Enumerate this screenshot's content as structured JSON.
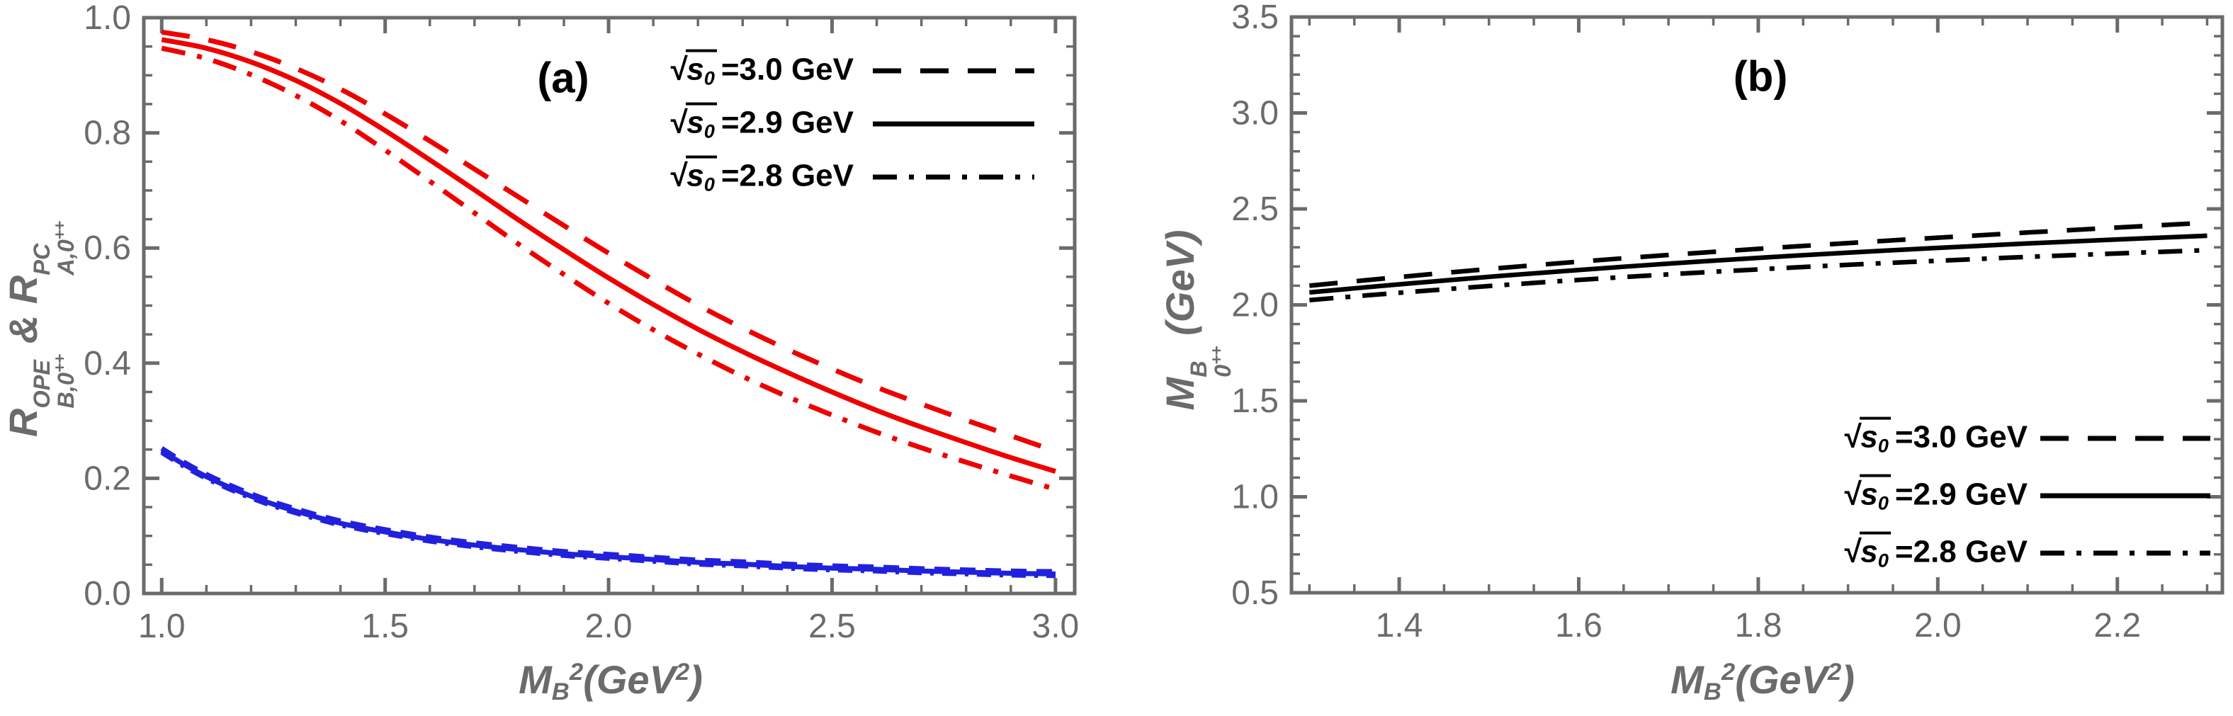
{
  "figure": {
    "background": "#ffffff",
    "axis_color": "#6b6b6b",
    "tick_label_color": "#6b6b6b",
    "panel_label_color": "#000000"
  },
  "chart_data": [
    {
      "type": "line",
      "panel_label": "(a)",
      "title": "",
      "xlabel": "M_B^2 (GeV^2)",
      "ylabel": "R_B,0++^OPE & R_A,0++^PC",
      "xlabel_tokens": [
        {
          "t": "M"
        },
        {
          "sub": "B"
        },
        {
          "sup": "2"
        },
        {
          "t": "(GeV"
        },
        {
          "sup": "2"
        },
        {
          "t": ")"
        }
      ],
      "ylabel_tokens": [
        {
          "t": "R"
        },
        {
          "sup": "OPE",
          "sub": "B,0++"
        },
        {
          "t": " & "
        },
        {
          "t": "R"
        },
        {
          "sup": "PC",
          "sub": "A,0++"
        }
      ],
      "xlim": [
        0.96,
        3.043
      ],
      "ylim": [
        0.0,
        1.0
      ],
      "x_major_ticks": [
        1.0,
        1.5,
        2.0,
        2.5,
        3.0
      ],
      "x_minor_step": 0.1,
      "y_major_ticks": [
        0.0,
        0.2,
        0.4,
        0.6,
        0.8,
        1.0
      ],
      "y_minor_step": 0.05,
      "grid": false,
      "legend_position": "top-right-inside",
      "legend": [
        {
          "symbol_base": "s",
          "symbol_sub": "0",
          "label": "=3.0 GeV",
          "line_style": "dashed"
        },
        {
          "symbol_base": "s",
          "symbol_sub": "0",
          "label": "=2.9 GeV",
          "line_style": "solid"
        },
        {
          "symbol_base": "s",
          "symbol_sub": "0",
          "label": "=2.8 GeV",
          "line_style": "dashdot"
        }
      ],
      "series": [
        {
          "name": "R_OPE sqrt(s0)=3.0 GeV",
          "color": "#ee0000",
          "line_style": "dashed",
          "width": 7,
          "x": [
            1.0,
            1.1,
            1.2,
            1.3,
            1.4,
            1.5,
            1.6,
            1.7,
            1.8,
            1.9,
            2.0,
            2.1,
            2.2,
            2.3,
            2.4,
            2.5,
            2.6,
            2.7,
            2.8,
            2.9,
            3.0
          ],
          "y": [
            0.975,
            0.962,
            0.941,
            0.912,
            0.876,
            0.833,
            0.786,
            0.737,
            0.688,
            0.639,
            0.591,
            0.545,
            0.501,
            0.461,
            0.424,
            0.39,
            0.358,
            0.329,
            0.301,
            0.274,
            0.247
          ]
        },
        {
          "name": "R_OPE sqrt(s0)=2.9 GeV",
          "color": "#ee0000",
          "line_style": "solid",
          "width": 7,
          "x": [
            1.0,
            1.1,
            1.2,
            1.3,
            1.4,
            1.5,
            1.6,
            1.7,
            1.8,
            1.9,
            2.0,
            2.1,
            2.2,
            2.3,
            2.4,
            2.5,
            2.6,
            2.7,
            2.8,
            2.9,
            3.0
          ],
          "y": [
            0.962,
            0.947,
            0.923,
            0.891,
            0.851,
            0.804,
            0.753,
            0.701,
            0.648,
            0.597,
            0.548,
            0.502,
            0.459,
            0.42,
            0.384,
            0.35,
            0.318,
            0.289,
            0.262,
            0.236,
            0.212
          ]
        },
        {
          "name": "R_OPE sqrt(s0)=2.8 GeV",
          "color": "#ee0000",
          "line_style": "dashdot",
          "width": 7,
          "x": [
            1.0,
            1.1,
            1.2,
            1.3,
            1.4,
            1.5,
            1.6,
            1.7,
            1.8,
            1.9,
            2.0,
            2.1,
            2.2,
            2.3,
            2.4,
            2.5,
            2.6,
            2.7,
            2.8,
            2.9,
            3.0
          ],
          "y": [
            0.947,
            0.929,
            0.901,
            0.865,
            0.821,
            0.77,
            0.716,
            0.661,
            0.606,
            0.554,
            0.504,
            0.458,
            0.416,
            0.377,
            0.342,
            0.31,
            0.28,
            0.253,
            0.228,
            0.204,
            0.181
          ]
        },
        {
          "name": "R_PC sqrt(s0)=3.0 GeV",
          "color": "#2121dd",
          "line_style": "dashed-fine",
          "width": 7,
          "x": [
            1.0,
            1.05,
            1.1,
            1.15,
            1.2,
            1.25,
            1.3,
            1.35,
            1.4,
            1.45,
            1.5,
            1.6,
            1.7,
            1.8,
            1.9,
            2.0,
            2.1,
            2.2,
            2.3,
            2.4,
            2.5,
            2.6,
            2.7,
            2.8,
            2.9,
            3.0
          ],
          "y": [
            0.252,
            0.228,
            0.207,
            0.189,
            0.173,
            0.159,
            0.147,
            0.136,
            0.126,
            0.118,
            0.111,
            0.098,
            0.088,
            0.08,
            0.073,
            0.068,
            0.063,
            0.058,
            0.055,
            0.051,
            0.048,
            0.046,
            0.043,
            0.041,
            0.039,
            0.038
          ]
        },
        {
          "name": "R_PC sqrt(s0)=2.9 GeV",
          "color": "#2121dd",
          "line_style": "solid",
          "width": 7,
          "x": [
            1.0,
            1.05,
            1.1,
            1.15,
            1.2,
            1.25,
            1.3,
            1.35,
            1.4,
            1.45,
            1.5,
            1.6,
            1.7,
            1.8,
            1.9,
            2.0,
            2.1,
            2.2,
            2.3,
            2.4,
            2.5,
            2.6,
            2.7,
            2.8,
            2.9,
            3.0
          ],
          "y": [
            0.248,
            0.224,
            0.203,
            0.185,
            0.169,
            0.155,
            0.143,
            0.132,
            0.122,
            0.114,
            0.107,
            0.094,
            0.084,
            0.076,
            0.069,
            0.064,
            0.059,
            0.054,
            0.051,
            0.047,
            0.044,
            0.042,
            0.039,
            0.037,
            0.035,
            0.034
          ]
        },
        {
          "name": "R_PC sqrt(s0)=2.8 GeV",
          "color": "#2121dd",
          "line_style": "dashdot-fine",
          "width": 7,
          "x": [
            1.0,
            1.05,
            1.1,
            1.15,
            1.2,
            1.25,
            1.3,
            1.35,
            1.4,
            1.45,
            1.5,
            1.6,
            1.7,
            1.8,
            1.9,
            2.0,
            2.1,
            2.2,
            2.3,
            2.4,
            2.5,
            2.6,
            2.7,
            2.8,
            2.9,
            3.0
          ],
          "y": [
            0.245,
            0.221,
            0.2,
            0.182,
            0.166,
            0.152,
            0.14,
            0.129,
            0.119,
            0.111,
            0.104,
            0.091,
            0.081,
            0.073,
            0.066,
            0.061,
            0.056,
            0.051,
            0.048,
            0.044,
            0.041,
            0.039,
            0.036,
            0.034,
            0.032,
            0.031
          ]
        }
      ]
    },
    {
      "type": "line",
      "panel_label": "(b)",
      "title": "",
      "xlabel": "M_B^2 (GeV^2)",
      "ylabel": "M_0++^B (GeV)",
      "xlabel_tokens": [
        {
          "t": "M"
        },
        {
          "sub": "B"
        },
        {
          "sup": "2"
        },
        {
          "t": "(GeV"
        },
        {
          "sup": "2"
        },
        {
          "t": ")"
        }
      ],
      "ylabel_tokens": [
        {
          "t": "M"
        },
        {
          "sup": "B",
          "sub": "0++"
        },
        {
          "t": " (GeV)"
        }
      ],
      "xlim": [
        1.28,
        2.317
      ],
      "ylim": [
        0.5,
        3.5
      ],
      "x_major_ticks": [
        1.4,
        1.6,
        1.8,
        2.0,
        2.2
      ],
      "x_minor_step": 0.05,
      "y_major_ticks": [
        0.5,
        1.0,
        1.5,
        2.0,
        2.5,
        3.0,
        3.5
      ],
      "y_minor_step": 0.1,
      "grid": false,
      "legend_position": "bottom-right-inside",
      "legend": [
        {
          "symbol_base": "s",
          "symbol_sub": "0",
          "label": "=3.0 GeV",
          "line_style": "dashed"
        },
        {
          "symbol_base": "s",
          "symbol_sub": "0",
          "label": "=2.9 GeV",
          "line_style": "solid"
        },
        {
          "symbol_base": "s",
          "symbol_sub": "0",
          "label": "=2.8 GeV",
          "line_style": "dashdot"
        }
      ],
      "series": [
        {
          "name": "M sqrt(s0)=3.0 GeV",
          "color": "#000000",
          "line_style": "dashed",
          "width": 6.5,
          "x": [
            1.3,
            1.4,
            1.5,
            1.6,
            1.7,
            1.8,
            1.9,
            2.0,
            2.1,
            2.2,
            2.3
          ],
          "y": [
            2.1,
            2.145,
            2.187,
            2.225,
            2.26,
            2.292,
            2.322,
            2.35,
            2.377,
            2.403,
            2.428
          ]
        },
        {
          "name": "M sqrt(s0)=2.9 GeV",
          "color": "#000000",
          "line_style": "solid",
          "width": 6.5,
          "x": [
            1.3,
            1.4,
            1.5,
            1.6,
            1.7,
            1.8,
            1.9,
            2.0,
            2.1,
            2.2,
            2.3
          ],
          "y": [
            2.065,
            2.107,
            2.146,
            2.182,
            2.215,
            2.245,
            2.272,
            2.297,
            2.32,
            2.341,
            2.36
          ]
        },
        {
          "name": "M sqrt(s0)=2.8 GeV",
          "color": "#000000",
          "line_style": "dashdot",
          "width": 6.5,
          "x": [
            1.3,
            1.4,
            1.5,
            1.6,
            1.7,
            1.8,
            1.9,
            2.0,
            2.1,
            2.2,
            2.3
          ],
          "y": [
            2.025,
            2.063,
            2.098,
            2.13,
            2.159,
            2.185,
            2.209,
            2.23,
            2.25,
            2.268,
            2.285
          ]
        }
      ]
    }
  ]
}
